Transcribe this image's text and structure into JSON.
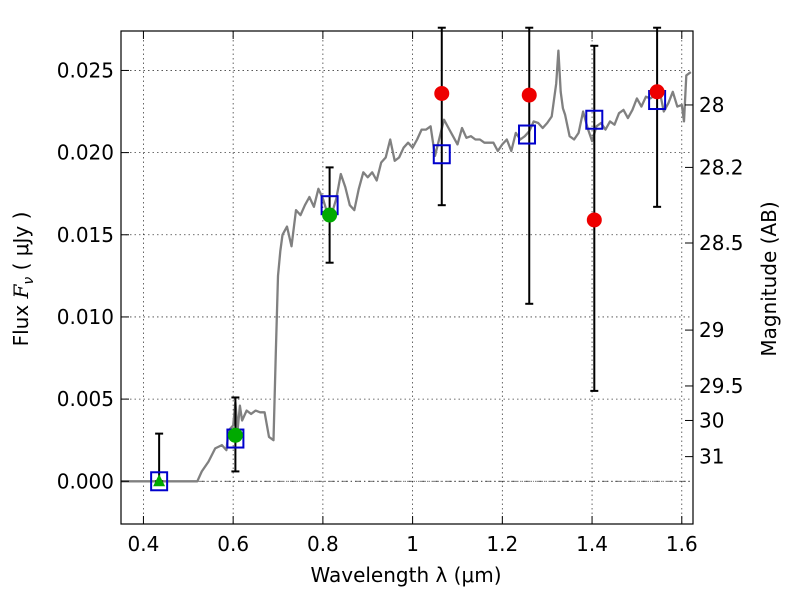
{
  "chart_data": {
    "type": "scatter",
    "xlabel": "Wavelength  λ (μm)",
    "ylabel": "Flux  F_ν  ( μJy )",
    "ylabel_parts": {
      "prefix": "Flux  ",
      "symbol": "F",
      "subscript": "ν",
      "suffix": "  ( μJy )"
    },
    "y2label": "Magnitude (AB)",
    "xlim": [
      0.35,
      1.625
    ],
    "ylim": [
      -0.0026,
      0.0274
    ],
    "grid": true,
    "x_ticks": [
      0.4,
      0.6,
      0.8,
      1.0,
      1.2,
      1.4,
      1.6
    ],
    "x_tick_labels": [
      "0.4",
      "0.6",
      "0.8",
      "1",
      "1.2",
      "1.4",
      "1.6"
    ],
    "y_ticks": [
      0.0,
      0.005,
      0.01,
      0.015,
      0.02,
      0.025
    ],
    "y_tick_labels": [
      "0.000",
      "0.005",
      "0.010",
      "0.015",
      "0.020",
      "0.025"
    ],
    "y2_ticks": [
      {
        "label": "28",
        "flux": 0.0229
      },
      {
        "label": "28.2",
        "flux": 0.0191
      },
      {
        "label": "28.5",
        "flux": 0.0145
      },
      {
        "label": "29",
        "flux": 0.0092
      },
      {
        "label": "29.5",
        "flux": 0.0058
      },
      {
        "label": "30",
        "flux": 0.0037
      },
      {
        "label": "31",
        "flux": 0.0015
      }
    ],
    "zero_line": true,
    "colors": {
      "spectrum": "#808080",
      "model": "#0000cc",
      "green": "#00aa00",
      "red": "#ee0000",
      "errorbar": "#000000"
    },
    "series": [
      {
        "kind": "model_spectrum",
        "x": [
          0.35,
          0.52,
          0.53,
          0.545,
          0.56,
          0.575,
          0.585,
          0.59,
          0.6,
          0.605,
          0.61,
          0.615,
          0.62,
          0.63,
          0.64,
          0.65,
          0.66,
          0.67,
          0.68,
          0.69,
          0.695,
          0.7,
          0.705,
          0.71,
          0.72,
          0.73,
          0.74,
          0.75,
          0.76,
          0.77,
          0.78,
          0.79,
          0.8,
          0.81,
          0.82,
          0.83,
          0.84,
          0.85,
          0.86,
          0.87,
          0.88,
          0.89,
          0.9,
          0.91,
          0.92,
          0.93,
          0.94,
          0.95,
          0.96,
          0.97,
          0.98,
          0.99,
          1.0,
          1.01,
          1.02,
          1.03,
          1.04,
          1.05,
          1.06,
          1.07,
          1.08,
          1.09,
          1.1,
          1.11,
          1.12,
          1.13,
          1.14,
          1.15,
          1.16,
          1.17,
          1.18,
          1.19,
          1.2,
          1.21,
          1.22,
          1.23,
          1.24,
          1.25,
          1.26,
          1.27,
          1.28,
          1.29,
          1.3,
          1.31,
          1.32,
          1.325,
          1.33,
          1.335,
          1.34,
          1.35,
          1.36,
          1.37,
          1.38,
          1.39,
          1.4,
          1.41,
          1.42,
          1.43,
          1.44,
          1.45,
          1.46,
          1.47,
          1.48,
          1.49,
          1.5,
          1.51,
          1.52,
          1.53,
          1.54,
          1.55,
          1.56,
          1.57,
          1.58,
          1.59,
          1.6,
          1.605,
          1.61,
          1.62
        ],
        "y": [
          0.0,
          0.0,
          0.0006,
          0.0012,
          0.002,
          0.0022,
          0.0019,
          0.0031,
          0.0034,
          0.0048,
          0.0031,
          0.0046,
          0.0037,
          0.0043,
          0.0041,
          0.0043,
          0.0042,
          0.0042,
          0.0027,
          0.0025,
          0.0078,
          0.0125,
          0.014,
          0.015,
          0.0155,
          0.0143,
          0.0165,
          0.0162,
          0.0168,
          0.0173,
          0.0167,
          0.0178,
          0.0172,
          0.0163,
          0.0163,
          0.0172,
          0.0187,
          0.0179,
          0.0168,
          0.0165,
          0.0178,
          0.0188,
          0.0185,
          0.0188,
          0.0183,
          0.0194,
          0.0197,
          0.0208,
          0.0195,
          0.0197,
          0.0203,
          0.0206,
          0.0203,
          0.0208,
          0.0214,
          0.0214,
          0.0216,
          0.0198,
          0.0209,
          0.022,
          0.0215,
          0.021,
          0.0205,
          0.0215,
          0.0209,
          0.021,
          0.0208,
          0.0208,
          0.0206,
          0.0206,
          0.0206,
          0.0201,
          0.0205,
          0.0208,
          0.0201,
          0.0212,
          0.0208,
          0.021,
          0.0213,
          0.0219,
          0.0218,
          0.0215,
          0.0218,
          0.0222,
          0.0242,
          0.0262,
          0.0237,
          0.0227,
          0.0223,
          0.021,
          0.0208,
          0.0212,
          0.0225,
          0.0215,
          0.0207,
          0.0216,
          0.0218,
          0.0214,
          0.0219,
          0.0217,
          0.0224,
          0.0226,
          0.0221,
          0.0226,
          0.0233,
          0.0228,
          0.0234,
          0.0233,
          0.0235,
          0.0238,
          0.0225,
          0.023,
          0.0237,
          0.0228,
          0.0229,
          0.0219,
          0.0247,
          0.0249
        ]
      },
      {
        "kind": "model_photometry",
        "marker": "open-square",
        "x": [
          0.435,
          0.605,
          0.815,
          1.065,
          1.255,
          1.405,
          1.545
        ],
        "y": [
          0.0,
          0.0026,
          0.0168,
          0.0199,
          0.0211,
          0.022,
          0.0232
        ]
      },
      {
        "kind": "detections",
        "marker": "filled-circle",
        "x": [
          0.605,
          0.815
        ],
        "y": [
          0.0028,
          0.0162
        ],
        "yerr_low": [
          0.0006,
          0.0133
        ],
        "yerr_high": [
          0.0051,
          0.0191
        ]
      },
      {
        "kind": "upper_limit",
        "marker": "filled-triangle",
        "x": [
          0.435
        ],
        "y": [
          0.0
        ],
        "yerr_low": [
          0.0
        ],
        "yerr_high": [
          0.0029
        ]
      },
      {
        "kind": "low_significance",
        "marker": "filled-circle",
        "x": [
          1.065,
          1.26,
          1.405,
          1.545
        ],
        "y": [
          0.0236,
          0.0235,
          0.0159,
          0.0237
        ],
        "yerr_low": [
          0.0168,
          0.0108,
          0.0055,
          0.0167
        ],
        "yerr_high": [
          0.0276,
          0.0276,
          0.0265,
          0.0276
        ]
      }
    ]
  }
}
